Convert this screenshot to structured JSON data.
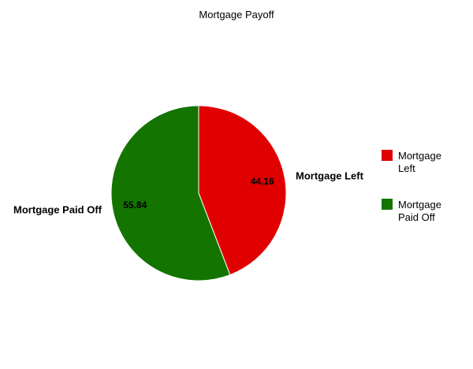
{
  "chart_data": {
    "type": "pie",
    "title": "Mortgage Payoff",
    "slices": [
      {
        "label": "Mortgage Left",
        "value": 44.16,
        "value_label": "44.16",
        "color": "#e00000",
        "legend": [
          "Mortgage",
          "Left"
        ]
      },
      {
        "label": "Mortgage Paid Off",
        "value": 55.84,
        "value_label": "55.84",
        "color": "#147400",
        "legend": [
          "Mortgage",
          "Paid Off"
        ]
      }
    ],
    "start_angle": "12 o'clock",
    "direction": "clockwise",
    "legend_position": "right"
  }
}
